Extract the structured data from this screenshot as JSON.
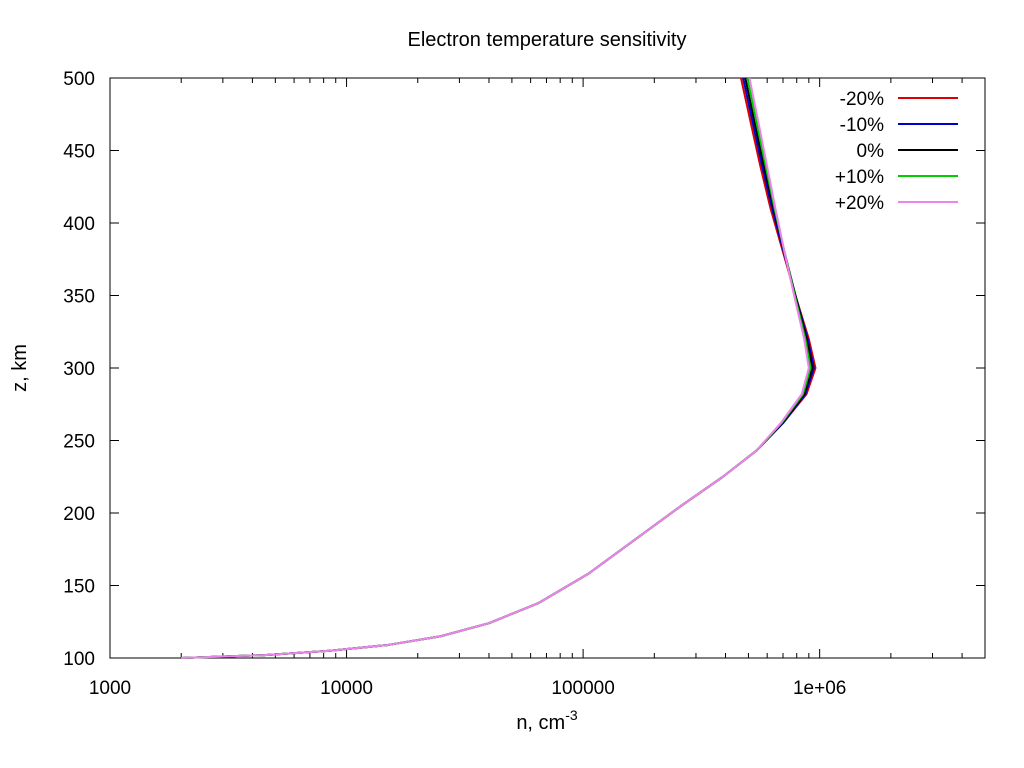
{
  "chart_data": {
    "type": "line",
    "title": "Electron temperature sensitivity",
    "xlabel": "n, cm",
    "xlabel_superscript": "-3",
    "ylabel": "z, km",
    "xscale": "log",
    "xlim": [
      1000,
      5000000
    ],
    "ylim": [
      100,
      500
    ],
    "xticks": [
      {
        "value": 1000,
        "label": "1000"
      },
      {
        "value": 10000,
        "label": "10000"
      },
      {
        "value": 100000,
        "label": "100000"
      },
      {
        "value": 1000000,
        "label": "1e+06"
      }
    ],
    "yticks": [
      {
        "value": 100,
        "label": "100"
      },
      {
        "value": 150,
        "label": "150"
      },
      {
        "value": 200,
        "label": "200"
      },
      {
        "value": 250,
        "label": "250"
      },
      {
        "value": 300,
        "label": "300"
      },
      {
        "value": 350,
        "label": "350"
      },
      {
        "value": 400,
        "label": "400"
      },
      {
        "value": 450,
        "label": "450"
      },
      {
        "value": 500,
        "label": "500"
      }
    ],
    "grid": false,
    "legend": "top-right",
    "series": [
      {
        "name": "-20%",
        "color": "#dd0000",
        "points": [
          [
            2000,
            100
          ],
          [
            4500,
            102
          ],
          [
            8500,
            105
          ],
          [
            15000,
            109
          ],
          [
            25000,
            115
          ],
          [
            40000,
            124
          ],
          [
            65000,
            138
          ],
          [
            105000,
            158
          ],
          [
            170000,
            183
          ],
          [
            260000,
            205
          ],
          [
            390000,
            225
          ],
          [
            540000,
            243
          ],
          [
            700000,
            262
          ],
          [
            880000,
            282
          ],
          [
            960000,
            300
          ],
          [
            900000,
            320
          ],
          [
            790000,
            350
          ],
          [
            700000,
            380
          ],
          [
            620000,
            410
          ],
          [
            560000,
            440
          ],
          [
            510000,
            470
          ],
          [
            465000,
            500
          ]
        ]
      },
      {
        "name": "-10%",
        "color": "#0000cc",
        "points": [
          [
            2000,
            100
          ],
          [
            4500,
            102
          ],
          [
            8500,
            105
          ],
          [
            15000,
            109
          ],
          [
            25000,
            115
          ],
          [
            40000,
            124
          ],
          [
            65000,
            138
          ],
          [
            105000,
            158
          ],
          [
            170000,
            183
          ],
          [
            260000,
            205
          ],
          [
            390000,
            225
          ],
          [
            540000,
            243
          ],
          [
            700000,
            262
          ],
          [
            870000,
            282
          ],
          [
            945000,
            300
          ],
          [
            890000,
            320
          ],
          [
            790000,
            350
          ],
          [
            705000,
            380
          ],
          [
            630000,
            410
          ],
          [
            570000,
            440
          ],
          [
            520000,
            470
          ],
          [
            475000,
            500
          ]
        ]
      },
      {
        "name": "0%",
        "color": "#000000",
        "points": [
          [
            2000,
            100
          ],
          [
            4500,
            102
          ],
          [
            8500,
            105
          ],
          [
            15000,
            109
          ],
          [
            25000,
            115
          ],
          [
            40000,
            124
          ],
          [
            65000,
            138
          ],
          [
            105000,
            158
          ],
          [
            170000,
            183
          ],
          [
            260000,
            205
          ],
          [
            390000,
            225
          ],
          [
            540000,
            243
          ],
          [
            695000,
            262
          ],
          [
            860000,
            282
          ],
          [
            930000,
            300
          ],
          [
            880000,
            320
          ],
          [
            790000,
            350
          ],
          [
            710000,
            380
          ],
          [
            640000,
            410
          ],
          [
            580000,
            440
          ],
          [
            530000,
            470
          ],
          [
            485000,
            500
          ]
        ]
      },
      {
        "name": "+10%",
        "color": "#00cc00",
        "points": [
          [
            2000,
            100
          ],
          [
            4500,
            102
          ],
          [
            8500,
            105
          ],
          [
            15000,
            109
          ],
          [
            25000,
            115
          ],
          [
            40000,
            124
          ],
          [
            65000,
            138
          ],
          [
            105000,
            158
          ],
          [
            170000,
            183
          ],
          [
            260000,
            205
          ],
          [
            390000,
            225
          ],
          [
            540000,
            243
          ],
          [
            690000,
            262
          ],
          [
            850000,
            282
          ],
          [
            915000,
            300
          ],
          [
            870000,
            320
          ],
          [
            785000,
            350
          ],
          [
            710000,
            380
          ],
          [
            645000,
            410
          ],
          [
            590000,
            440
          ],
          [
            540000,
            470
          ],
          [
            495000,
            500
          ]
        ]
      },
      {
        "name": "+20%",
        "color": "#ee82ee",
        "points": [
          [
            2000,
            100
          ],
          [
            4500,
            102
          ],
          [
            8500,
            105
          ],
          [
            15000,
            109
          ],
          [
            25000,
            115
          ],
          [
            40000,
            124
          ],
          [
            65000,
            138
          ],
          [
            105000,
            158
          ],
          [
            170000,
            183
          ],
          [
            260000,
            205
          ],
          [
            390000,
            225
          ],
          [
            540000,
            243
          ],
          [
            685000,
            262
          ],
          [
            840000,
            282
          ],
          [
            900000,
            300
          ],
          [
            860000,
            320
          ],
          [
            780000,
            350
          ],
          [
            710000,
            380
          ],
          [
            650000,
            410
          ],
          [
            598000,
            440
          ],
          [
            550000,
            470
          ],
          [
            505000,
            500
          ]
        ]
      }
    ]
  }
}
